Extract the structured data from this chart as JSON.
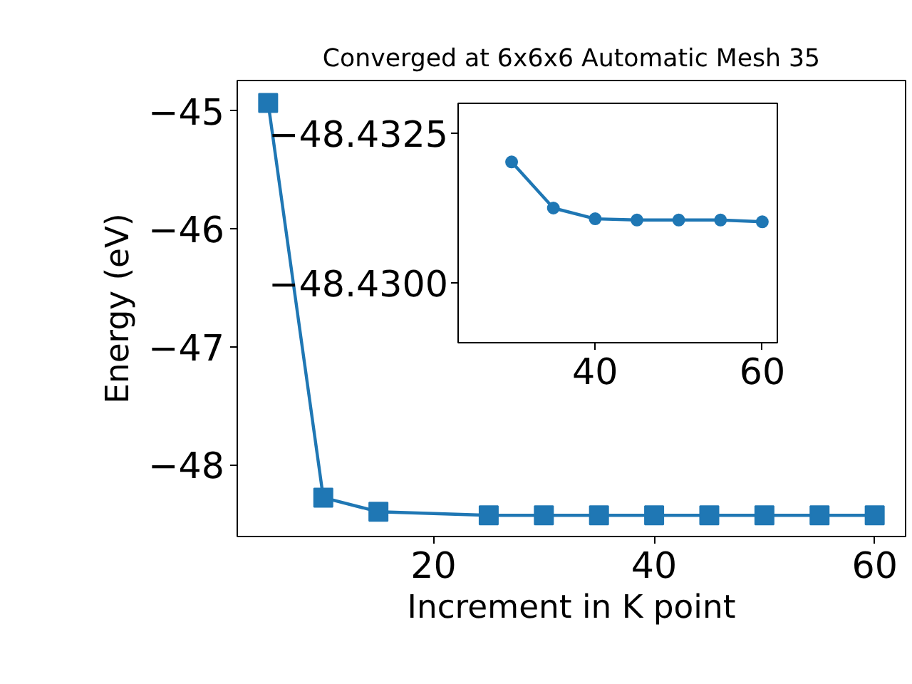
{
  "chart_data": [
    {
      "type": "line",
      "title": "Converged at 6x6x6 Automatic Mesh 35",
      "xlabel": "Increment in K point",
      "ylabel": "Energy (eV)",
      "x": [
        5,
        10,
        15,
        25,
        30,
        35,
        40,
        45,
        50,
        55,
        60
      ],
      "values": [
        -44.93,
        -48.28,
        -48.4,
        -48.43,
        -48.43,
        -48.43,
        -48.43,
        -48.43,
        -48.43,
        -48.43,
        -48.43
      ],
      "color": "#1f77b4",
      "marker": "square",
      "xlim": [
        2.2,
        62.8
      ],
      "ylim": [
        -48.61,
        -44.74
      ],
      "xticks": [
        20,
        40,
        60
      ],
      "yticks": [
        {
          "value": -48,
          "label": "−48"
        },
        {
          "value": -47,
          "label": "−47"
        },
        {
          "value": -46,
          "label": "−46"
        },
        {
          "value": -45,
          "label": "−45"
        }
      ]
    },
    {
      "type": "line",
      "x": [
        30,
        35,
        40,
        45,
        50,
        55,
        60
      ],
      "values": [
        -48.43202,
        -48.43125,
        -48.43107,
        -48.43105,
        -48.43105,
        -48.43105,
        -48.43102
      ],
      "color": "#1f77b4",
      "marker": "circle",
      "xlim": [
        23.6,
        61.8
      ],
      "ylim": [
        -48.429,
        -48.433
      ],
      "xticks": [
        40,
        60
      ],
      "yticks": [
        {
          "value": -48.4325,
          "label": "−48.4325"
        },
        {
          "value": -48.43,
          "label": "−48.4300"
        }
      ]
    }
  ]
}
